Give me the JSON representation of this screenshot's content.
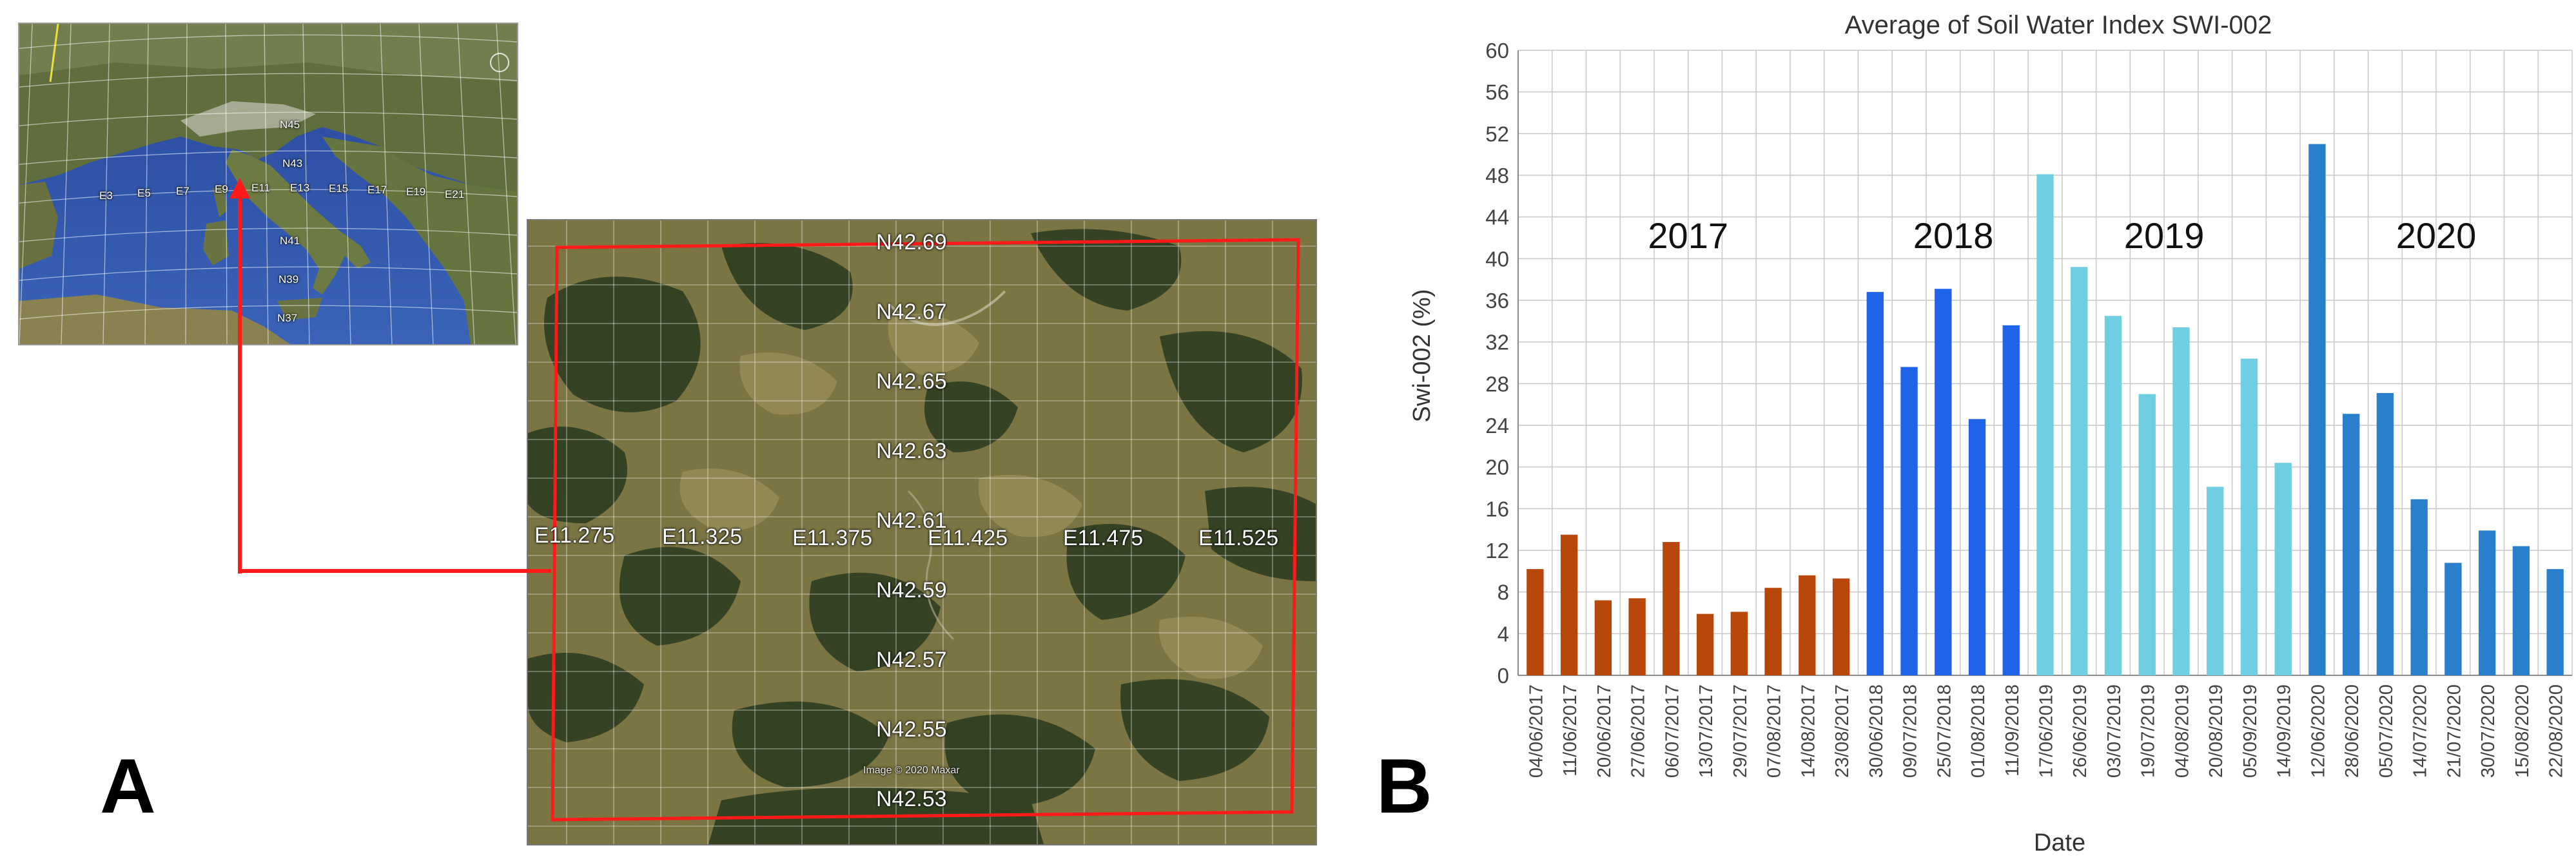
{
  "panel_a": {
    "letter": "A",
    "overview_labels": [
      "E3",
      "E5",
      "E7",
      "E9",
      "E11",
      "E13",
      "E15",
      "E17",
      "E19",
      "E21",
      "N43",
      "N45",
      "N39",
      "N41",
      "N37"
    ],
    "satellite_lat_labels": [
      "N42.69",
      "N42.67",
      "N42.65",
      "N42.63",
      "N42.61",
      "N42.59",
      "N42.57",
      "N42.55",
      "N42.53"
    ],
    "satellite_lon_labels": [
      "E11.275",
      "E11.325",
      "E11.375",
      "E11.425",
      "E11.475",
      "E11.525"
    ],
    "copyright": "Image © 2020 Maxar",
    "colors": {
      "arrow": "#ff1a1a",
      "aoi_outline": "#ff1a1a",
      "sea": "#2f56a8",
      "land": "#6e7a45"
    }
  },
  "panel_b": {
    "letter": "B"
  },
  "chart_data": {
    "type": "bar",
    "title": "Average of Soil Water Index SWI-002",
    "xlabel": "Date",
    "ylabel": "Swi-002 (%)",
    "ylim": [
      0,
      60
    ],
    "yticks": [
      0,
      4,
      8,
      12,
      16,
      20,
      24,
      28,
      32,
      36,
      40,
      44,
      48,
      52,
      56,
      60
    ],
    "grid": true,
    "legend": "none",
    "categories": [
      "04/06/2017",
      "11/06/2017",
      "20/06/2017",
      "27/06/2017",
      "06/07/2017",
      "13/07/2017",
      "29/07/2017",
      "07/08/2017",
      "14/08/2017",
      "23/08/2017",
      "30/06/2018",
      "09/07/2018",
      "25/07/2018",
      "01/08/2018",
      "11/09/2018",
      "17/06/2019",
      "26/06/2019",
      "03/07/2019",
      "19/07/2019",
      "04/08/2019",
      "20/08/2019",
      "05/09/2019",
      "14/09/2019",
      "12/06/2020",
      "28/06/2020",
      "05/07/2020",
      "14/07/2020",
      "21/07/2020",
      "30/07/2020",
      "15/08/2020",
      "22/08/2020"
    ],
    "values": [
      10.2,
      13.5,
      7.2,
      7.4,
      12.8,
      5.9,
      6.1,
      8.4,
      9.6,
      9.3,
      36.8,
      29.6,
      37.1,
      24.6,
      33.6,
      48.1,
      39.2,
      34.5,
      27.0,
      33.4,
      18.1,
      30.4,
      20.4,
      51.0,
      25.1,
      27.1,
      16.9,
      10.8,
      13.9,
      12.4,
      10.2
    ],
    "groups": [
      {
        "label": "2017",
        "start": 0,
        "count": 10,
        "color": "#b8470c"
      },
      {
        "label": "2018",
        "start": 10,
        "count": 5,
        "color": "#1f63e8"
      },
      {
        "label": "2019",
        "start": 15,
        "count": 8,
        "color": "#6fcfe0"
      },
      {
        "label": "2020",
        "start": 23,
        "count": 8,
        "color": "#2a7fcc"
      }
    ]
  }
}
